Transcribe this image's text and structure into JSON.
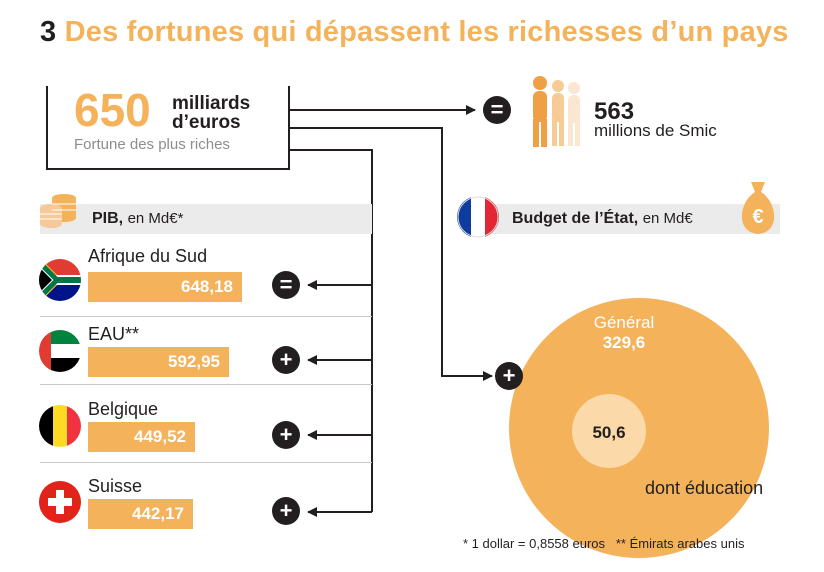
{
  "title": {
    "number": "3",
    "text": "Des fortunes qui dépassent les richesses d’un pays"
  },
  "fortune": {
    "value": "650",
    "unit": "milliards d’euros",
    "subtitle": "Fortune des plus riches"
  },
  "smic": {
    "value": "563",
    "label": "millions de Smic"
  },
  "pib": {
    "label": "PIB,",
    "unit": "en Md€*"
  },
  "budget": {
    "label": "Budget de l’État,",
    "unit": "en Md€"
  },
  "countries": [
    {
      "name": "Afrique du Sud",
      "value": "648,18",
      "symbol": "="
    },
    {
      "name": "EAU**",
      "value": "592,95",
      "symbol": "+"
    },
    {
      "name": "Belgique",
      "value": "449,52",
      "symbol": "+"
    },
    {
      "name": "Suisse",
      "value": "442,17",
      "symbol": "+"
    }
  ],
  "chart_data": {
    "type": "bar",
    "categories": [
      "Afrique du Sud",
      "EAU**",
      "Belgique",
      "Suisse"
    ],
    "values": [
      648.18,
      592.95,
      449.52,
      442.17
    ]
  },
  "budget_circles": {
    "general_label": "Général",
    "general_value": "329,6",
    "education_value": "50,6",
    "education_label": "dont éducation"
  },
  "smic_badge": "=",
  "budget_badge": "+",
  "footnote": "* 1 dollar = 0,8558 euros   ** Émirats arabes unis",
  "colors": {
    "accent": "#f4b25b",
    "dark": "#231f20",
    "light_orange": "#fbd9a9",
    "band": "#ebebeb"
  }
}
